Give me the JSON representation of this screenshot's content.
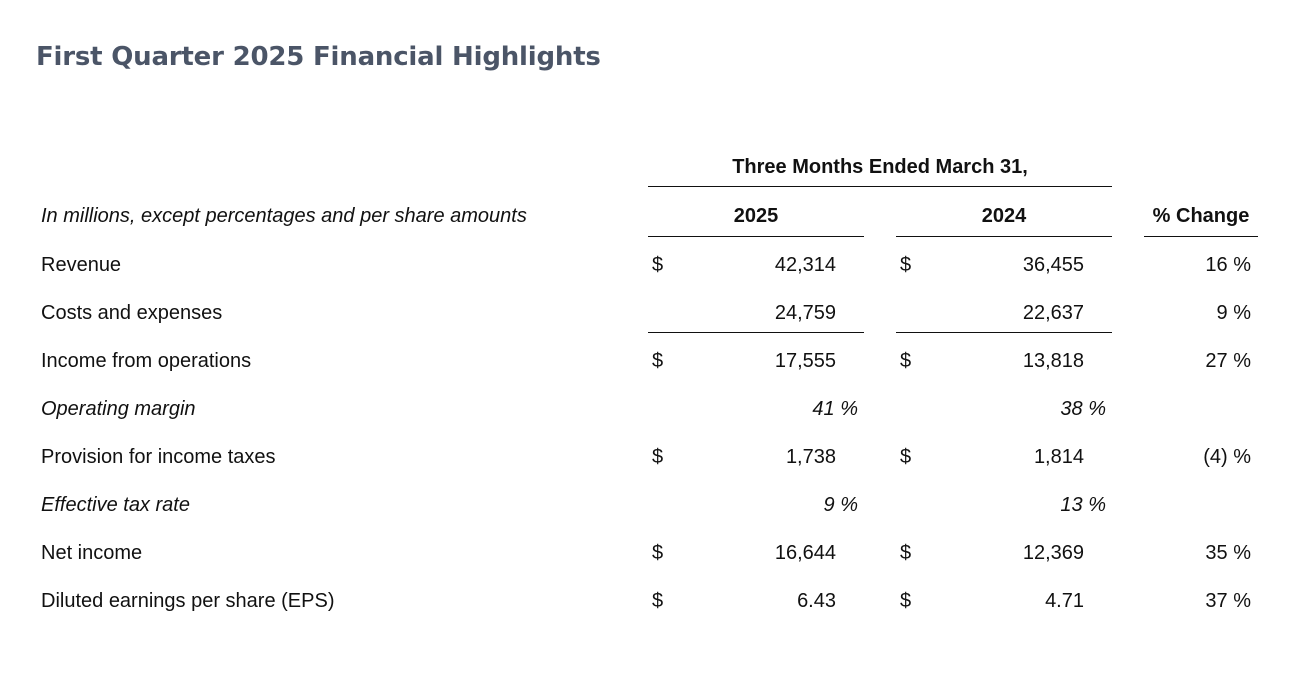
{
  "title": "First Quarter 2025 Financial Highlights",
  "table": {
    "period_header": "Three Months Ended March 31,",
    "units_note": "In millions, except percentages and per share amounts",
    "columns": [
      "2025",
      "2024",
      "% Change"
    ],
    "rows": [
      {
        "label": "Revenue",
        "cur_2025": "$",
        "v2025": "42,314",
        "cur_2024": "$",
        "v2024": "36,455",
        "change": "16 %"
      },
      {
        "label": "Costs and expenses",
        "cur_2025": "",
        "v2025": "24,759",
        "cur_2024": "",
        "v2024": "22,637",
        "change": "9 %"
      },
      {
        "label": "Income from operations",
        "cur_2025": "$",
        "v2025": "17,555",
        "cur_2024": "$",
        "v2024": "13,818",
        "change": "27 %"
      },
      {
        "label": "Operating margin",
        "pct_2025": "41 %",
        "pct_2024": "38 %"
      },
      {
        "label": "Provision for income taxes",
        "cur_2025": "$",
        "v2025": "1,738",
        "cur_2024": "$",
        "v2024": "1,814",
        "change": "(4) %"
      },
      {
        "label": "Effective tax rate",
        "pct_2025": "9 %",
        "pct_2024": "13 %"
      },
      {
        "label": "Net income",
        "cur_2025": "$",
        "v2025": "16,644",
        "cur_2024": "$",
        "v2024": "12,369",
        "change": "35 %"
      },
      {
        "label": "Diluted earnings per share (EPS)",
        "cur_2025": "$",
        "v2025": "6.43",
        "cur_2024": "$",
        "v2024": "4.71",
        "change": "37 %"
      }
    ]
  }
}
